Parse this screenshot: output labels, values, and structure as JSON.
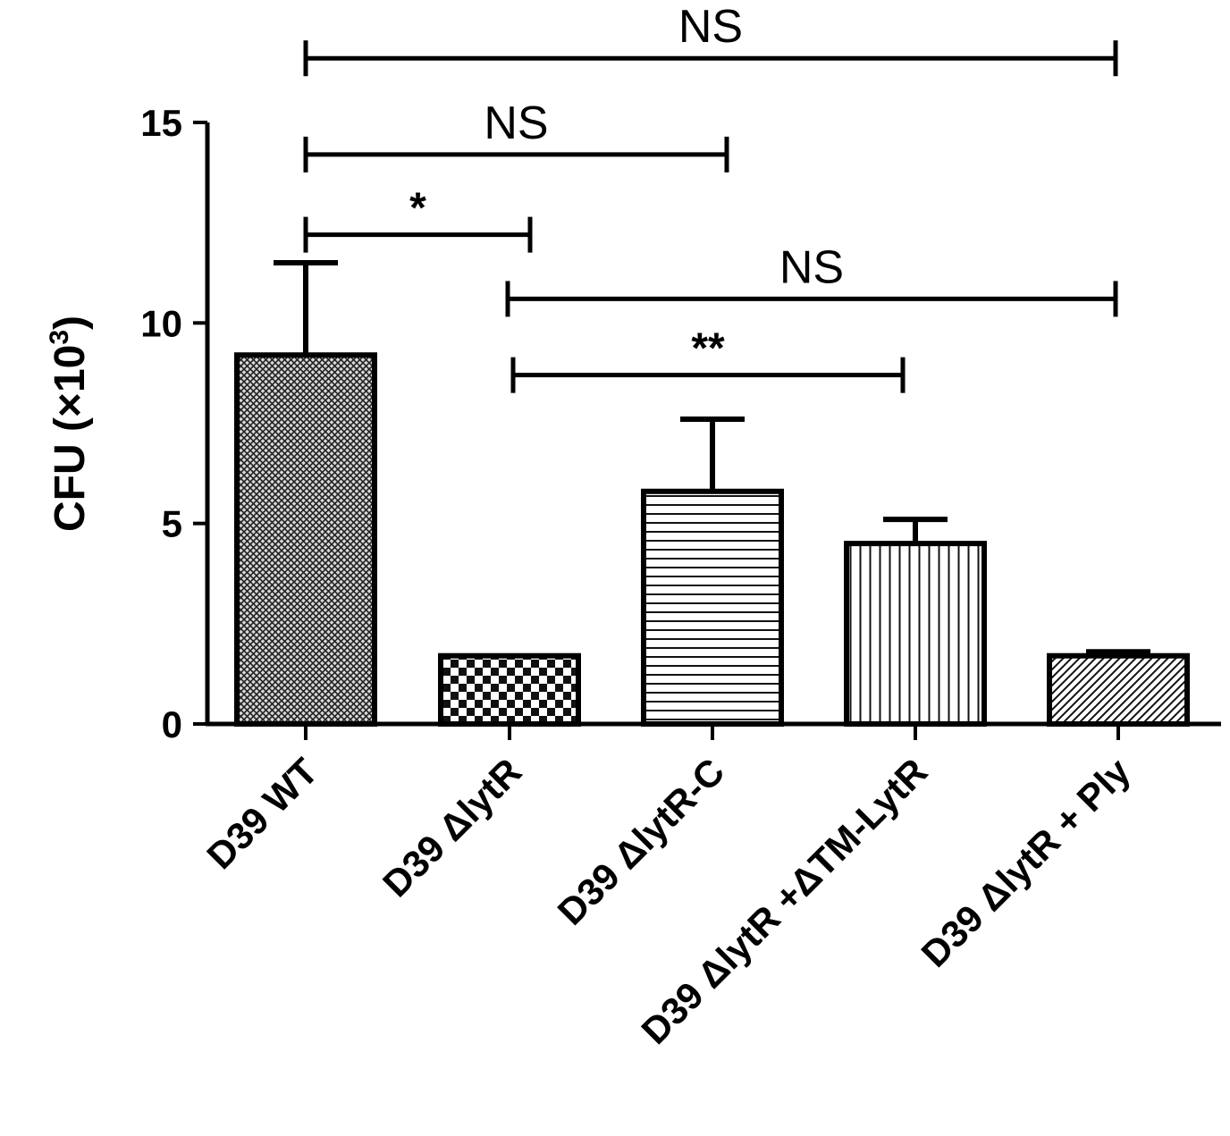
{
  "chart_data": {
    "type": "bar",
    "categories": [
      "D39 WT",
      "D39 ΔlytR",
      "D39 ΔlytR-C",
      "D39 ΔlytR +ΔTM-LytR",
      "D39 ΔlytR + Ply"
    ],
    "values": [
      9.2,
      1.7,
      5.8,
      4.5,
      1.7
    ],
    "errors": [
      2.3,
      0.0,
      1.8,
      0.6,
      0.1
    ],
    "patterns": [
      "crosshatch",
      "checker",
      "horizontal-lines",
      "vertical-lines",
      "diagonal-lines"
    ],
    "ylabel_main": "CFU (×10",
    "ylabel_sup": "3",
    "ylabel_close": ")",
    "ylim": [
      0,
      15
    ],
    "yticks": [
      "0",
      "5",
      "10",
      "15"
    ],
    "ytick_values": [
      0,
      5,
      10,
      15
    ],
    "grid": false,
    "significance": [
      {
        "from": 0,
        "to": 4,
        "label": "NS",
        "level": 16.6
      },
      {
        "from": 0,
        "to": 2,
        "label": "NS",
        "level": 14.2
      },
      {
        "from": 0,
        "to": 1,
        "label": "*",
        "level": 12.2
      },
      {
        "from": 1,
        "to": 4,
        "label": "NS",
        "level": 10.6
      },
      {
        "from": 1,
        "to": 3,
        "label": "**",
        "level": 8.7
      }
    ]
  }
}
